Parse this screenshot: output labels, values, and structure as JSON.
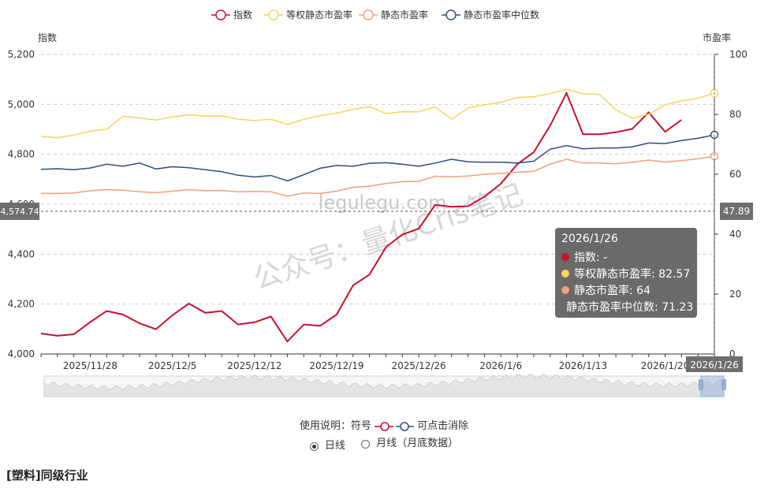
{
  "chart_data": {
    "type": "line",
    "legend_position": "top-center",
    "y_left_label": "指数",
    "y_right_label": "市盈率",
    "y_left_range": [
      4000,
      5200
    ],
    "y_right_range": [
      0,
      100
    ],
    "y_left_ticks": [
      "4,000",
      "4,200",
      "4,400",
      "4,600",
      "4,800",
      "5,000",
      "5,200"
    ],
    "y_right_ticks": [
      "0",
      "20",
      "40",
      "60",
      "80",
      "100"
    ],
    "x_tick_labels": [
      {
        "index": 3,
        "label": "2025/11/28"
      },
      {
        "index": 8,
        "label": "2025/12/5"
      },
      {
        "index": 13,
        "label": "2025/12/12"
      },
      {
        "index": 18,
        "label": "2025/12/19"
      },
      {
        "index": 23,
        "label": "2025/12/26"
      },
      {
        "index": 28,
        "label": "2026/1/6"
      },
      {
        "index": 33,
        "label": "2026/1/13"
      },
      {
        "index": 38,
        "label": "2026/1/20"
      }
    ],
    "last_label": "2026/1/26",
    "crosshair_left_value": "4,574.74",
    "crosshair_right_value": "47.89",
    "grid": true,
    "series": [
      {
        "name": "指数",
        "color": "#c8102e",
        "axis": "left",
        "values": [
          4082,
          4073,
          4079,
          4128,
          4172,
          4158,
          4123,
          4099,
          4155,
          4202,
          4165,
          4172,
          4118,
          4127,
          4150,
          4050,
          4118,
          4113,
          4158,
          4275,
          4318,
          4428,
          4478,
          4502,
          4597,
          4590,
          4592,
          4630,
          4682,
          4760,
          4808,
          4915,
          5045,
          4880,
          4880,
          4888,
          4902,
          4968,
          4890,
          4938,
          null,
          null
        ]
      },
      {
        "name": "等权静态市盈率",
        "color": "#f6d65a",
        "axis": "left",
        "values": [
          4872,
          4866,
          4877,
          4893,
          4900,
          4952,
          4945,
          4937,
          4950,
          4958,
          4953,
          4954,
          4940,
          4935,
          4940,
          4920,
          4940,
          4955,
          4965,
          4980,
          4991,
          4963,
          4970,
          4970,
          4990,
          4940,
          4986,
          4998,
          5008,
          5027,
          5030,
          5043,
          5060,
          5042,
          5040,
          4978,
          4944,
          4960,
          4998,
          5014,
          5024,
          5045
        ]
      },
      {
        "name": "静态市盈率",
        "color": "#f0a17a",
        "axis": "left",
        "values": [
          4643,
          4643,
          4645,
          4654,
          4658,
          4656,
          4650,
          4646,
          4652,
          4658,
          4654,
          4655,
          4650,
          4651,
          4650,
          4632,
          4645,
          4643,
          4652,
          4668,
          4672,
          4683,
          4690,
          4692,
          4712,
          4710,
          4713,
          4720,
          4723,
          4728,
          4732,
          4760,
          4780,
          4765,
          4765,
          4762,
          4768,
          4777,
          4768,
          4775,
          4782,
          4792
        ]
      },
      {
        "name": "静态市盈率中位数",
        "color": "#2b4f7c",
        "axis": "left",
        "values": [
          4740,
          4742,
          4738,
          4745,
          4760,
          4752,
          4765,
          4741,
          4750,
          4746,
          4738,
          4730,
          4716,
          4709,
          4715,
          4693,
          4718,
          4744,
          4755,
          4752,
          4764,
          4766,
          4760,
          4752,
          4765,
          4780,
          4770,
          4768,
          4768,
          4765,
          4772,
          4820,
          4835,
          4822,
          4825,
          4825,
          4830,
          4845,
          4843,
          4855,
          4864,
          4878
        ]
      }
    ]
  },
  "tooltip": {
    "date": "2026/1/26",
    "rows": [
      {
        "label": "指数: -",
        "color": "#c8102e"
      },
      {
        "label": "等权静态市盈率: 82.57",
        "color": "#f6d65a"
      },
      {
        "label": "静态市盈率: 64",
        "color": "#f0a17a"
      },
      {
        "label": "静态市盈率中位数: 71.23",
        "color": "#2b4f7c"
      }
    ]
  },
  "watermark": {
    "top": "legulegu.com",
    "main": "公众号：量化Cris笔记"
  },
  "usage": {
    "prefix": "使用说明：符号",
    "suffix": "可点击消除",
    "radio_daily": "日线",
    "radio_monthly": "月线（月底数据）"
  },
  "section_title": "[塑料]同级行业"
}
